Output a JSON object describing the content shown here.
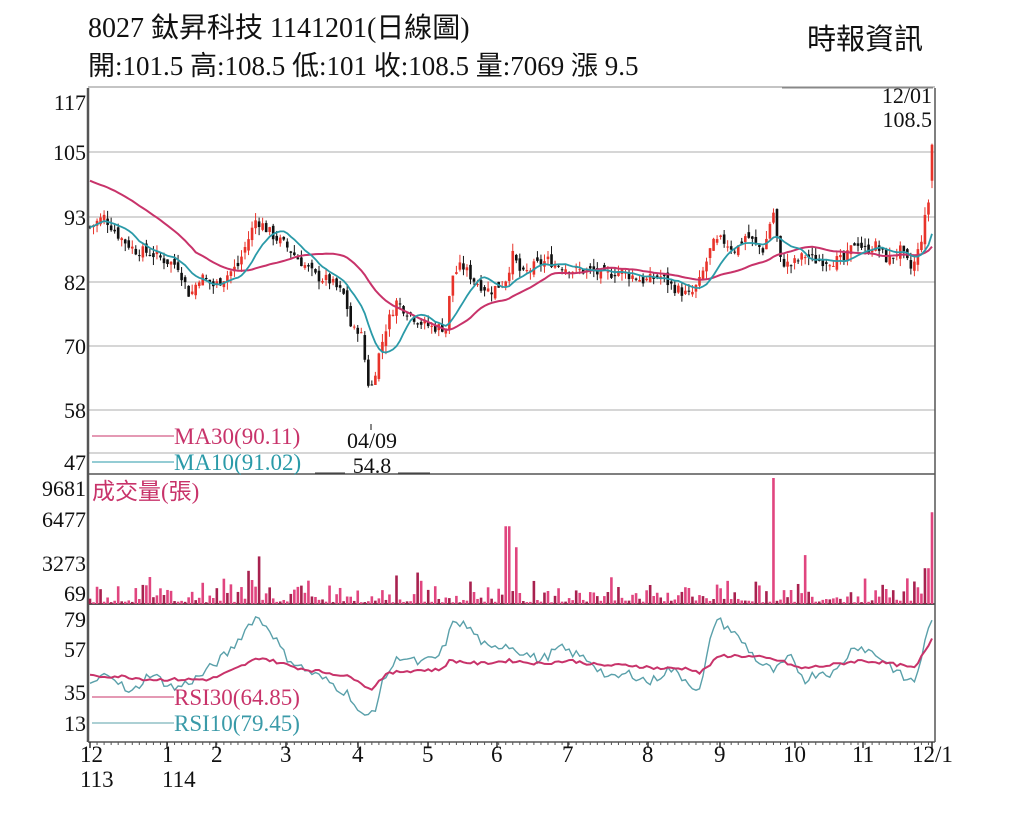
{
  "header": {
    "title": "8027  鈦昇科技 1141201(日線圖)",
    "ohlc": "開:101.5 高:108.5 低:101 收:108.5 量:7069 漲 9.5",
    "brand": "時報資訊"
  },
  "chart_data": [
    {
      "type": "candlestick",
      "title": "8027 鈦昇科技 1141201(日線圖)",
      "stock_code": "8027",
      "stock_name": "鈦昇科技",
      "date": "1141201",
      "period": "日線圖",
      "quote": {
        "open": 101.5,
        "high": 108.5,
        "low": 101,
        "close": 108.5,
        "volume": 7069,
        "change": 9.5
      },
      "yticks": [
        117,
        105,
        93,
        82,
        70,
        58,
        47
      ],
      "ylim": [
        47,
        117
      ],
      "grid": true,
      "annotations": [
        {
          "label": "12/01",
          "value": "108.5",
          "type": "high"
        },
        {
          "label": "04/09",
          "value": "54.8",
          "type": "low"
        }
      ],
      "legend": [
        {
          "name": "MA30(90.11)",
          "color": "#c8336a"
        },
        {
          "name": "MA10(91.02)",
          "color": "#2a9aa8"
        }
      ],
      "approx_close_path": [
        {
          "month": "12/113",
          "close": 93
        },
        {
          "month": "1/114",
          "close": 88
        },
        {
          "month": "2",
          "close": 82
        },
        {
          "month": "3",
          "close": 93
        },
        {
          "month": "4",
          "close": 70
        },
        {
          "month": "4/09",
          "close": 55
        },
        {
          "month": "5",
          "close": 74
        },
        {
          "month": "6",
          "close": 85
        },
        {
          "month": "7",
          "close": 84
        },
        {
          "month": "8",
          "close": 81
        },
        {
          "month": "9",
          "close": 89
        },
        {
          "month": "10",
          "close": 87
        },
        {
          "month": "11",
          "close": 91
        },
        {
          "month": "12/1",
          "close": 108.5
        }
      ]
    },
    {
      "type": "bar",
      "title": "成交量(張)",
      "yticks": [
        9681,
        6477,
        3273,
        69
      ],
      "ylim": [
        69,
        9681
      ],
      "notes": "Peak volume ~9681 near early October; last bar ~7069"
    },
    {
      "type": "line",
      "title": "RSI",
      "yticks": [
        79,
        57,
        35,
        13
      ],
      "legend": [
        {
          "name": "RSI30(64.85)",
          "color": "#c8336a"
        },
        {
          "name": "RSI10(79.45)",
          "color": "#3a9aa8"
        }
      ]
    }
  ],
  "xaxis": {
    "ticks": [
      "12",
      "1",
      "2",
      "3",
      "4",
      "5",
      "6",
      "7",
      "8",
      "9",
      "10",
      "11",
      "12/1"
    ],
    "years": [
      {
        "label": "113",
        "under": "12"
      },
      {
        "label": "114",
        "under": "1"
      }
    ]
  },
  "price_panel": {
    "yticks": [
      "117",
      "105",
      "93",
      "82",
      "70",
      "58",
      "47"
    ],
    "high_label": {
      "date": "12/01",
      "value": "108.5"
    },
    "low_label": {
      "date": "04/09",
      "value": "54.8"
    },
    "legend": {
      "ma30": "MA30(90.11)",
      "ma10": "MA10(91.02)"
    }
  },
  "volume_panel": {
    "title": "成交量(張)",
    "yticks": [
      "9681",
      "6477",
      "3273",
      "69"
    ]
  },
  "rsi_panel": {
    "yticks": [
      "79",
      "57",
      "35",
      "13"
    ],
    "legend": {
      "rsi30": "RSI30(64.85)",
      "rsi10": "RSI10(79.45)"
    }
  },
  "colors": {
    "up": "#e8332a",
    "down": "#111111",
    "ma30": "#c8336a",
    "ma10": "#2a9aa8",
    "volume": "#d6336f",
    "rsi30": "#c8336a",
    "rsi10": "#5aa0aa",
    "grid": "#c8c8c8"
  }
}
